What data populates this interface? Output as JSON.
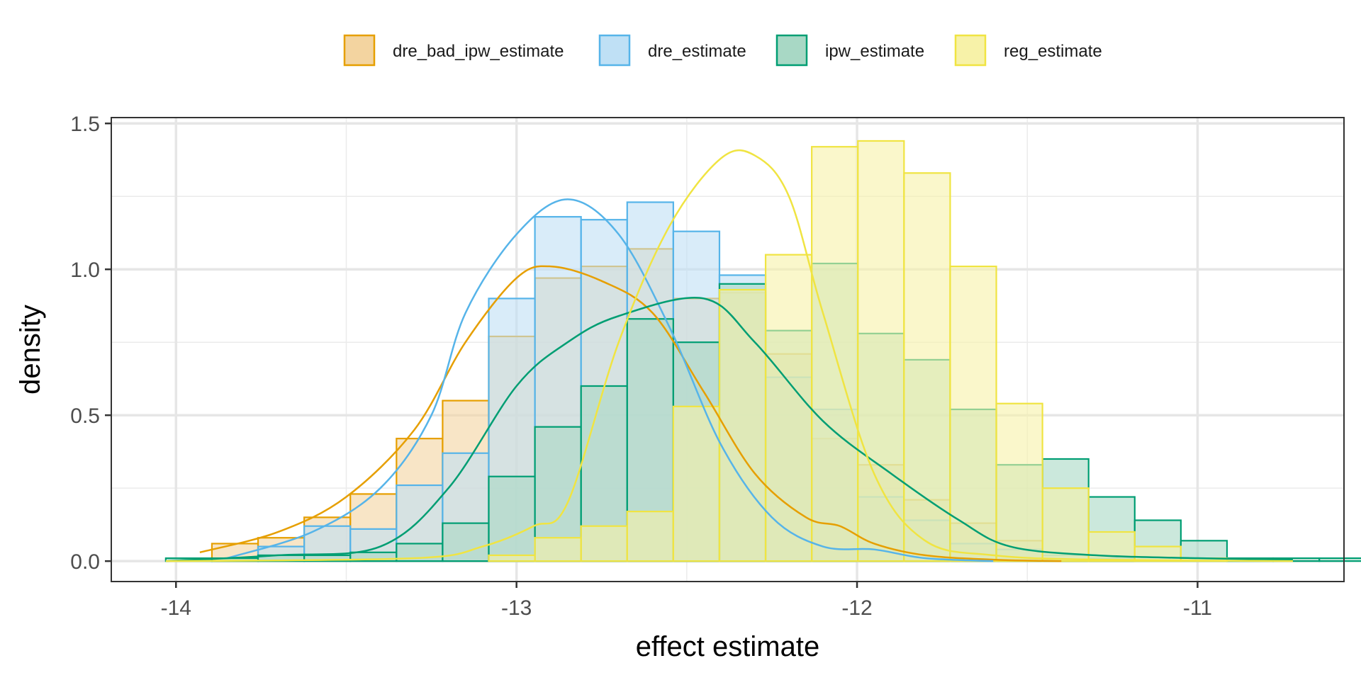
{
  "chart_data": {
    "type": "histogram-density",
    "title": "",
    "xlabel": "effect estimate",
    "ylabel": "density",
    "xlim": [
      -14.19,
      -10.57
    ],
    "ylim": [
      -0.07,
      1.52
    ],
    "x_ticks": [
      -14,
      -13,
      -12,
      -11
    ],
    "x_tick_labels": [
      "-14",
      "-13",
      "-12",
      "-11"
    ],
    "y_ticks": [
      0.0,
      0.5,
      1.0,
      1.5
    ],
    "y_tick_labels": [
      "0.0",
      "0.5",
      "1.0",
      "1.5"
    ],
    "grid": true,
    "legend_position": "top",
    "bin_start": -14.03,
    "bin_width": 0.1355,
    "series": [
      {
        "name": "dre_bad_ipw_estimate",
        "color": "#E69F00",
        "fill": "#F3D4A0",
        "hist": [
          0.0,
          0.06,
          0.08,
          0.15,
          0.23,
          0.42,
          0.55,
          0.77,
          0.97,
          1.01,
          1.07,
          0.9,
          0.92,
          0.71,
          0.42,
          0.33,
          0.21,
          0.13,
          0.07,
          0.02,
          0.01,
          0.0,
          0.0,
          0.0,
          0.0
        ],
        "density_x": [
          -13.93,
          -13.7,
          -13.5,
          -13.3,
          -13.15,
          -13.0,
          -12.9,
          -12.75,
          -12.6,
          -12.45,
          -12.3,
          -12.15,
          -12.05,
          -11.95,
          -11.8,
          -11.6,
          -11.4
        ],
        "density_y": [
          0.03,
          0.1,
          0.22,
          0.45,
          0.75,
          0.97,
          1.01,
          0.96,
          0.85,
          0.58,
          0.3,
          0.15,
          0.12,
          0.06,
          0.02,
          0.005,
          0.0
        ]
      },
      {
        "name": "dre_estimate",
        "color": "#56B4E9",
        "fill": "#BFE0F5",
        "hist": [
          0.0,
          0.0,
          0.05,
          0.12,
          0.11,
          0.26,
          0.37,
          0.9,
          1.18,
          1.17,
          1.23,
          1.13,
          0.98,
          0.63,
          0.52,
          0.22,
          0.14,
          0.06,
          0.04,
          0.02,
          0.01,
          0.0,
          0.0,
          0.0,
          0.0
        ],
        "density_x": [
          -13.85,
          -13.6,
          -13.4,
          -13.25,
          -13.15,
          -13.0,
          -12.85,
          -12.7,
          -12.55,
          -12.4,
          -12.25,
          -12.1,
          -11.95,
          -11.8,
          -11.6
        ],
        "density_y": [
          0.01,
          0.1,
          0.25,
          0.5,
          0.85,
          1.12,
          1.24,
          1.12,
          0.8,
          0.4,
          0.15,
          0.05,
          0.04,
          0.01,
          0.0
        ]
      },
      {
        "name": "ipw_estimate",
        "color": "#009E73",
        "fill": "#A8D8C5",
        "hist": [
          0.01,
          0.01,
          0.02,
          0.02,
          0.03,
          0.06,
          0.13,
          0.29,
          0.46,
          0.6,
          0.83,
          0.75,
          0.95,
          0.79,
          1.02,
          0.78,
          0.69,
          0.52,
          0.33,
          0.35,
          0.22,
          0.14,
          0.07,
          0.01,
          0.01,
          0.01
        ],
        "density_x": [
          -14.03,
          -13.7,
          -13.4,
          -13.2,
          -13.0,
          -12.85,
          -12.7,
          -12.45,
          -12.3,
          -12.1,
          -11.9,
          -11.7,
          -11.55,
          -11.3,
          -11.0,
          -10.72
        ],
        "density_y": [
          0.0,
          0.02,
          0.05,
          0.25,
          0.6,
          0.75,
          0.84,
          0.9,
          0.75,
          0.48,
          0.3,
          0.14,
          0.05,
          0.02,
          0.01,
          0.005
        ]
      },
      {
        "name": "reg_estimate",
        "color": "#F0E442",
        "fill": "#F7F2A8",
        "hist": [
          0.0,
          0.0,
          0.0,
          0.0,
          0.0,
          0.0,
          0.0,
          0.02,
          0.08,
          0.12,
          0.17,
          0.53,
          0.93,
          1.05,
          1.42,
          1.44,
          1.33,
          1.01,
          0.54,
          0.25,
          0.1,
          0.05,
          0.01,
          0.0,
          0.0
        ],
        "density_x": [
          -14.03,
          -13.3,
          -13.1,
          -12.95,
          -12.85,
          -12.7,
          -12.55,
          -12.4,
          -12.3,
          -12.2,
          -12.1,
          -11.95,
          -11.8,
          -11.6,
          -11.3,
          -10.72
        ],
        "density_y": [
          0.0,
          0.01,
          0.05,
          0.12,
          0.2,
          0.75,
          1.15,
          1.38,
          1.39,
          1.25,
          0.85,
          0.3,
          0.07,
          0.02,
          0.005,
          0.0
        ]
      }
    ]
  }
}
